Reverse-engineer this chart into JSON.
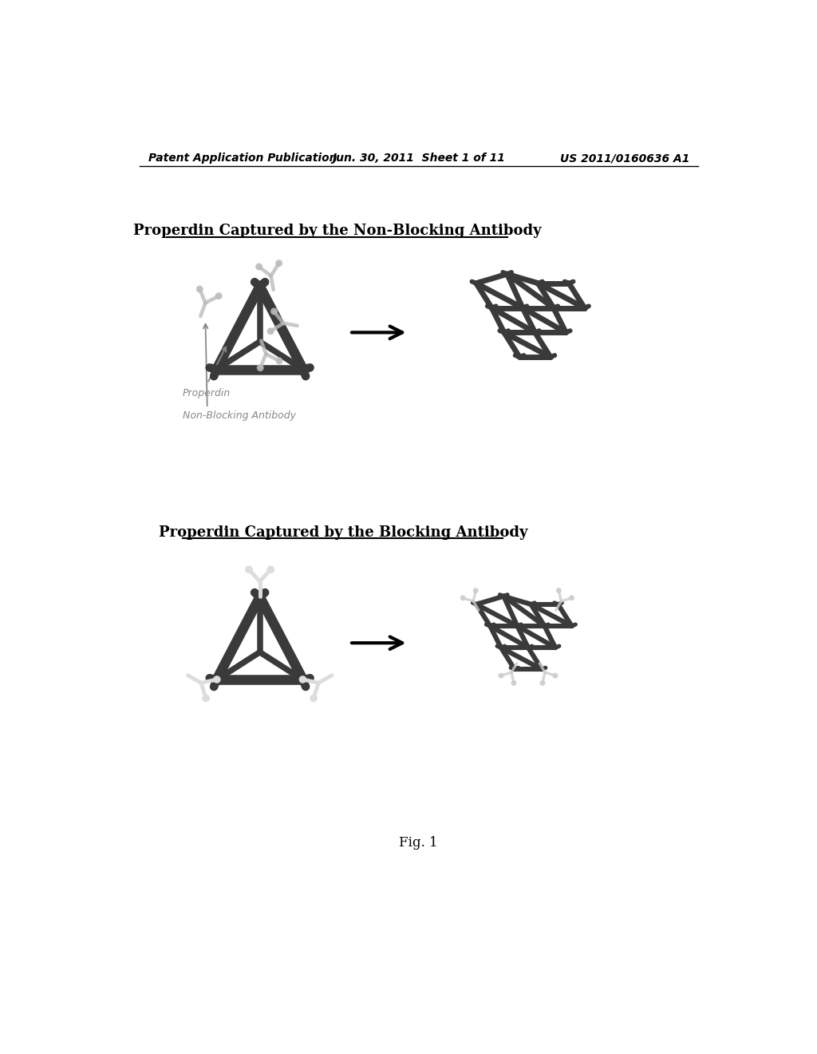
{
  "background_color": "#ffffff",
  "header_left": "Patent Application Publication",
  "header_mid": "Jun. 30, 2011  Sheet 1 of 11",
  "header_right": "US 2011/0160636 A1",
  "title1": "Properdin Captured by the Non-Blocking Antibody",
  "title2": "Properdin Captured by the Blocking Antibody",
  "label_properdin": "Properdin",
  "label_non_blocking": "Non-Blocking Antibody",
  "fig_label": "Fig. 1",
  "header_fontsize": 10,
  "title_fontsize": 13,
  "fig_label_fontsize": 12,
  "annotation_fontsize": 9,
  "dark_color": "#3a3a3a",
  "medium_color": "#888888",
  "light_color": "#bbbbbb"
}
